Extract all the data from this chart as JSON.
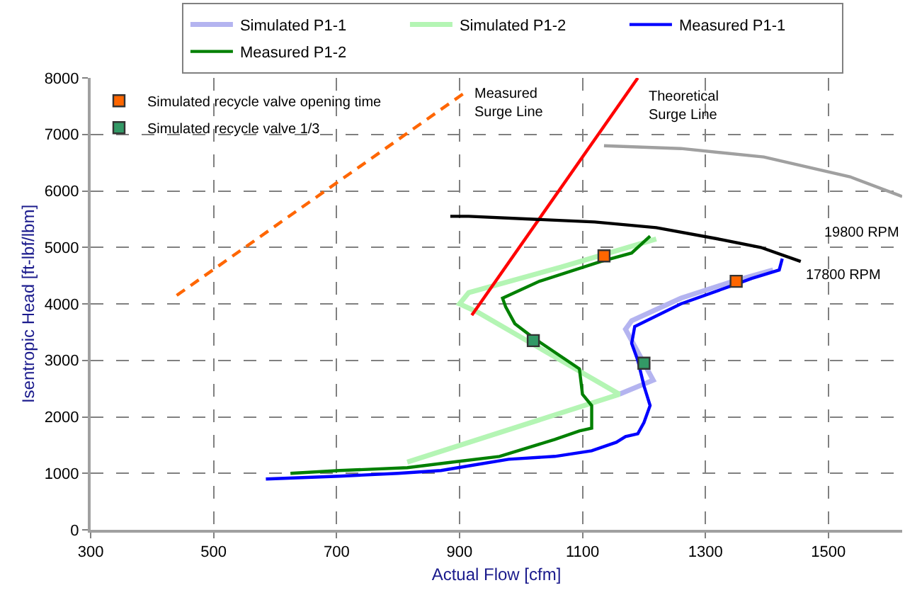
{
  "chart_data": {
    "type": "line",
    "xlabel": "Actual Flow [cfm]",
    "ylabel": "Isentropic Head [ft-lbf/lbm]",
    "xlim": [
      300,
      1620
    ],
    "xticks": [
      300,
      500,
      700,
      900,
      1100,
      1300,
      1500
    ],
    "ylim": [
      0,
      8000
    ],
    "yticks": [
      0,
      1000,
      2000,
      3000,
      4000,
      5000,
      6000,
      7000,
      8000
    ],
    "grid": true,
    "legend": "top",
    "marker": "none",
    "series": [
      {
        "name": "Simulated P1-1",
        "color": "#b4b4f0",
        "x": [
          1410,
          1345,
          1260,
          1180,
          1170,
          1180,
          1215,
          1160
        ],
        "values": [
          4600,
          4400,
          4100,
          3700,
          3550,
          3350,
          2650,
          2400
        ]
      },
      {
        "name": "Simulated P1-2",
        "color": "#b4f5b4",
        "x": [
          1220,
          1065,
          915,
          900,
          930,
          1160,
          815
        ],
        "values": [
          5150,
          4650,
          4200,
          4000,
          3850,
          2400,
          1200
        ]
      },
      {
        "name": "Measured P1-1",
        "color": "#0000ff",
        "x": [
          1425,
          1420,
          1375,
          1350,
          1260,
          1185,
          1180,
          1190,
          1200,
          1210,
          1200,
          1190,
          1170,
          1155,
          1115,
          1055,
          980,
          925,
          870,
          800,
          705,
          585
        ],
        "values": [
          4800,
          4600,
          4450,
          4350,
          4000,
          3600,
          3300,
          3000,
          2550,
          2200,
          1900,
          1700,
          1650,
          1550,
          1400,
          1300,
          1250,
          1150,
          1050,
          1000,
          950,
          900
        ]
      },
      {
        "name": "Measured P1-2",
        "color": "#008000",
        "x": [
          1210,
          1180,
          1130,
          1030,
          970,
          975,
          990,
          1020,
          1095,
          1100,
          1115,
          1115,
          1095,
          1055,
          965,
          890,
          815,
          705,
          625
        ],
        "values": [
          5200,
          4900,
          4750,
          4400,
          4100,
          3950,
          3650,
          3400,
          2850,
          2400,
          2200,
          1800,
          1750,
          1600,
          1300,
          1200,
          1100,
          1050,
          1000
        ]
      },
      {
        "name": "Measured\nSurge Line",
        "color": "#ff6600",
        "line_style": "dashed",
        "x": [
          440,
          910
        ],
        "values": [
          4150,
          7750
        ]
      },
      {
        "name": "Theoretical\nSurge Line",
        "color": "#ff0000",
        "x": [
          920,
          1190
        ],
        "values": [
          3800,
          8000
        ]
      },
      {
        "name": "17800 RPM",
        "color": "#000000",
        "x": [
          885,
          915,
          1120,
          1220,
          1320,
          1390,
          1455
        ],
        "values": [
          5550,
          5550,
          5450,
          5350,
          5150,
          5000,
          4750
        ]
      },
      {
        "name": "19800 RPM",
        "color": "#a0a0a0",
        "x": [
          1135,
          1260,
          1395,
          1535,
          1620
        ],
        "values": [
          6800,
          6750,
          6600,
          6250,
          5900
        ]
      },
      {
        "type": "scatter",
        "marker": "square",
        "name": "Simulated recycle valve opening time",
        "color": "#ff6600",
        "x": [
          1135,
          1350
        ],
        "values": [
          4850,
          4400
        ]
      },
      {
        "type": "scatter",
        "marker": "square",
        "name": "Simulated recycle valve 1/3",
        "color": "#339966",
        "x": [
          1020,
          1200
        ],
        "values": [
          3350,
          2950
        ]
      }
    ]
  }
}
